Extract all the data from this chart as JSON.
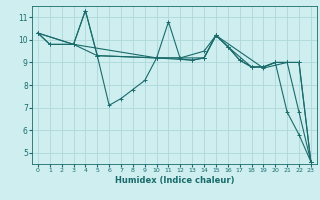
{
  "bg_color": "#ceeef0",
  "grid_color": "#aed8da",
  "line_color": "#1a6b6b",
  "xlabel": "Humidex (Indice chaleur)",
  "xlim": [
    -0.5,
    23.5
  ],
  "ylim": [
    4.5,
    11.5
  ],
  "yticks": [
    5,
    6,
    7,
    8,
    9,
    10,
    11
  ],
  "xticks": [
    0,
    1,
    2,
    3,
    4,
    5,
    6,
    7,
    8,
    9,
    10,
    11,
    12,
    13,
    14,
    15,
    16,
    17,
    18,
    19,
    20,
    21,
    22,
    23
  ],
  "lines": [
    {
      "x": [
        0,
        3,
        4,
        5,
        10,
        14,
        15,
        19,
        21,
        22,
        23
      ],
      "y": [
        10.3,
        9.8,
        11.3,
        9.3,
        9.2,
        9.2,
        10.2,
        8.75,
        9.0,
        6.8,
        4.6
      ]
    },
    {
      "x": [
        0,
        3,
        4,
        5,
        6,
        7,
        8,
        9,
        10,
        11,
        12,
        13,
        14,
        15,
        16,
        17,
        18,
        19,
        20,
        21,
        22,
        23
      ],
      "y": [
        10.3,
        9.8,
        11.3,
        9.3,
        7.1,
        7.4,
        7.8,
        8.2,
        9.2,
        10.8,
        9.15,
        9.1,
        9.2,
        10.2,
        9.7,
        9.1,
        8.8,
        8.8,
        9.0,
        6.8,
        5.8,
        4.6
      ]
    },
    {
      "x": [
        0,
        1,
        3,
        5,
        10,
        12,
        14,
        15,
        16,
        18,
        19,
        20,
        21,
        22,
        23
      ],
      "y": [
        10.3,
        9.8,
        9.8,
        9.3,
        9.2,
        9.2,
        9.5,
        10.2,
        9.7,
        8.8,
        8.8,
        9.0,
        9.0,
        9.0,
        4.6
      ]
    },
    {
      "x": [
        0,
        1,
        3,
        10,
        13,
        14,
        15,
        16,
        17,
        18,
        19,
        20,
        21,
        22,
        23
      ],
      "y": [
        10.3,
        9.8,
        9.8,
        9.2,
        9.1,
        9.2,
        10.2,
        9.7,
        9.1,
        8.8,
        8.8,
        9.0,
        9.0,
        9.0,
        4.6
      ]
    }
  ]
}
